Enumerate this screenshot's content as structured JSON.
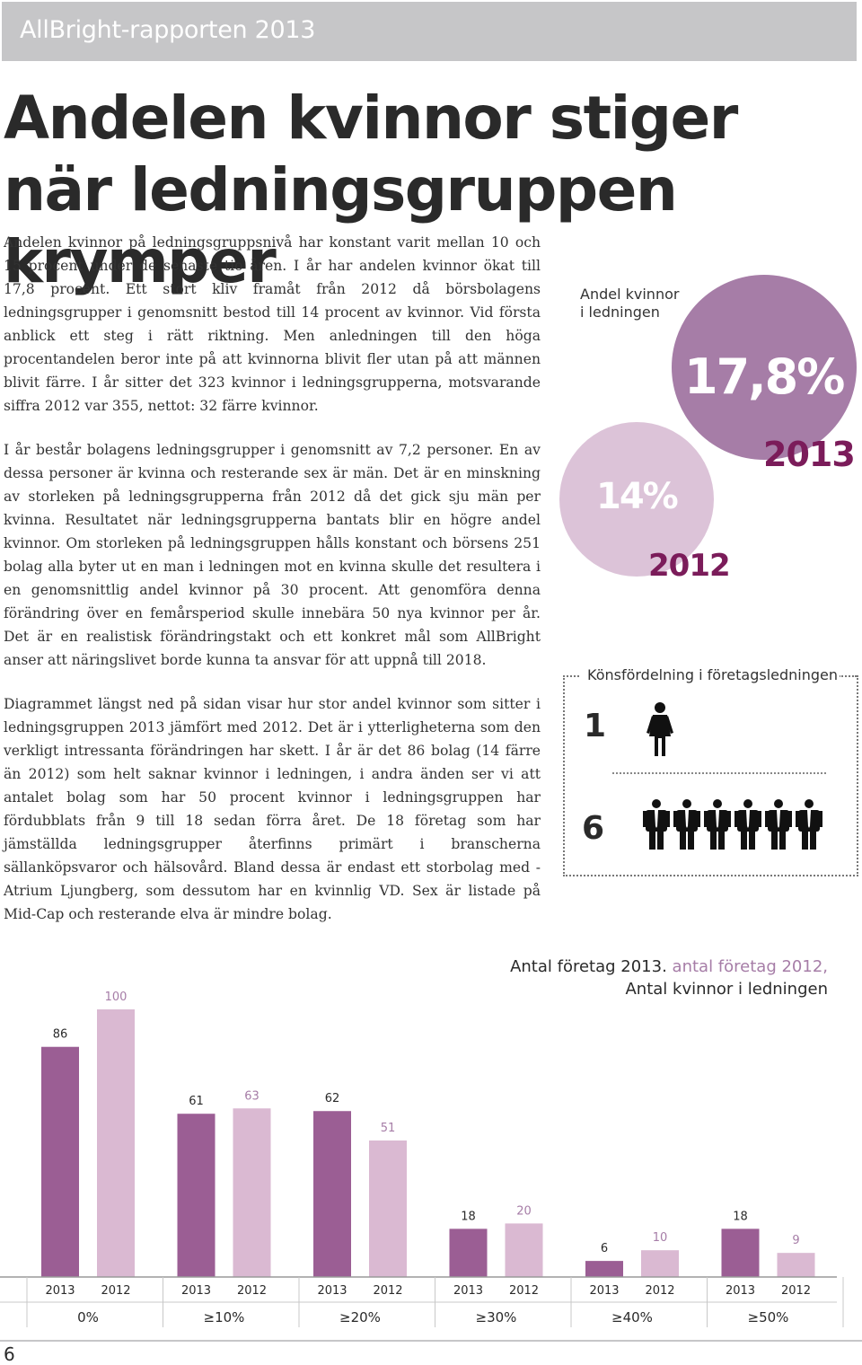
{
  "header": {
    "title": "AllBright-rapporten 2013"
  },
  "headline": "Andelen kvinnor stiger när ledningsgruppen krymper",
  "paragraphs": {
    "p1": "Andelen kvinnor på ledningsgruppsnivå har konstant varit mellan 10 och 15 procent under de senaste tio åren. I år har andelen kvinnor ökat till 17,8 procent. Ett stort kliv framåt från 2012 då börsbolagens ledningsgrupper i genomsnitt bestod till 14 procent av kvinnor. Vid första anblick ett steg i rätt riktning. Men anledningen till den höga procentandelen beror inte på att kvinnorna blivit fler utan på att männen blivit färre. I år sitter det 323 kvinnor i ledningsgrupperna, motsvarande siffra 2012 var 355, nettot: 32 färre kvinnor.",
    "p2": "I år består bolagens ledningsgrupper i genomsnitt av 7,2 personer. En av dessa personer är kvinna och resterande sex är män. Det är en minskning av storleken på ledningsgrupperna från 2012 då det gick sju män per kvinna. Resultatet när ledningsgrupperna bantats blir en högre andel kvinnor. Om storleken på ledningsgruppen hålls konstant och börsens 251 bolag alla byter ut en man i ledningen mot en kvinna skulle det resultera i en genomsnittlig andel kvinnor på 30 procent. Att genomföra denna förändring över en femårsperiod skulle innebära 50 nya kvinnor per år. Det är en realistisk förändringstakt och ett konkret mål som AllBright anser att näringslivet borde kunna ta ansvar för att uppnå till 2018.",
    "p3": "Diagrammet längst ned på sidan visar hur stor andel kvinnor som sitter i ledningsgruppen 2013 jämfört med 2012. Det är i ytterligheterna som den verkligt intressanta förändringen har skett. I år är det 86 bolag (14 färre än 2012) som helt saknar kvinnor i ledningen, i andra änden ser vi att antalet bolag som har 50 procent kvinnor i ledningsgruppen har fördubblats från 9 till 18 sedan förra året. De 18 företag som har jämställda ledningsgrupper återfinns primärt i branscherna sällanköpsvaror och hälsovård. Bland dessa är endast ett storbolag med - Atrium Ljungberg, som dessutom har en kvinnlig VD. Sex är listade på Mid-Cap och resterande elva är mindre bolag."
  },
  "andel": {
    "label": "Andel kvinnor\ni ledningen",
    "pct_2013": "17,8%",
    "year_2013": "2013",
    "pct_2012": "14%",
    "year_2012": "2012",
    "color_2013": "#a67da7",
    "color_2012": "#dcc3d8",
    "year_color": "#7b1c5a"
  },
  "konsfordelning": {
    "title": "Könsfördelning i företagsledningen",
    "women": "1",
    "men": "6",
    "women_count": 1,
    "men_count": 6,
    "icon_woman": "woman-icon",
    "icon_man": "man-icon"
  },
  "chart_data": {
    "type": "bar",
    "title": "",
    "legend": {
      "part1": "Antal företag 2013.",
      "part2": "antal företag 2012,",
      "part3": "Antal kvinnor i ledningen",
      "placement": "top-right"
    },
    "categories": [
      "0%",
      "≥10%",
      "≥20%",
      "≥30%",
      "≥40%",
      "≥50%"
    ],
    "series": [
      {
        "name": "2013",
        "values": [
          86,
          61,
          62,
          18,
          6,
          18
        ],
        "color": "#9b5e94"
      },
      {
        "name": "2012",
        "values": [
          100,
          63,
          51,
          20,
          10,
          9
        ],
        "color": "#dab9d2"
      }
    ],
    "ylim": [
      0,
      100
    ],
    "grid": false
  },
  "page_number": "6"
}
